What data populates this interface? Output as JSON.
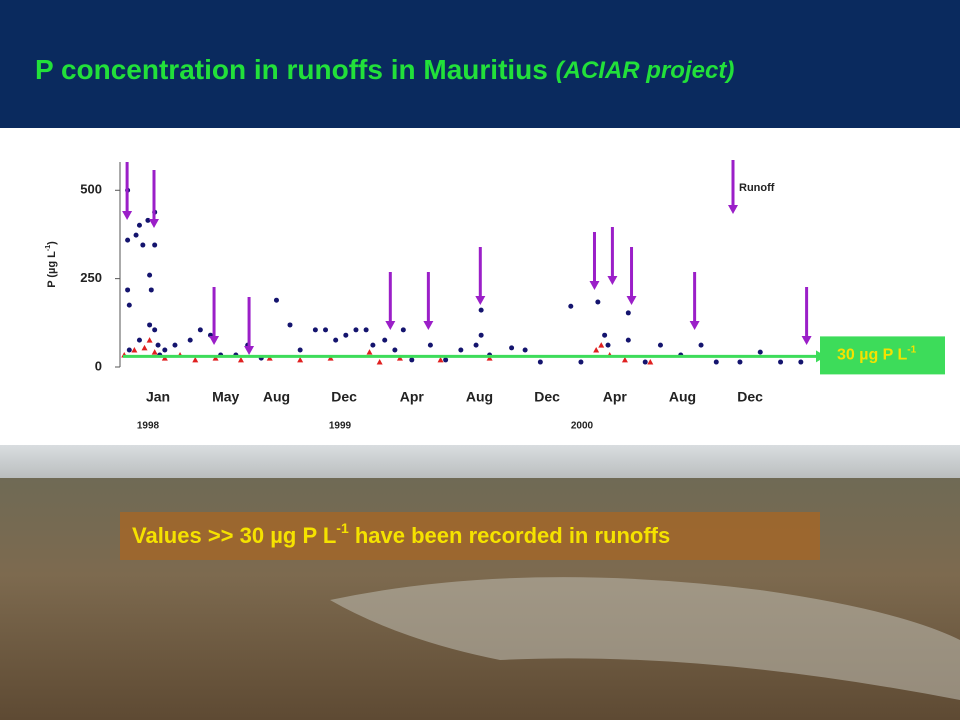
{
  "chart_data": {
    "type": "scatter",
    "title": "P concentration in runoffs in Mauritius",
    "title_note": "(ACIAR project)",
    "ylabel": "P  (µg L",
    "ylabel_sup": "-1",
    "ylabel_tail": ")",
    "xlim": [
      -2.25,
      38.6
    ],
    "ylim": [
      0,
      580
    ],
    "yticks": [
      0,
      250,
      500
    ],
    "xticks": [
      {
        "value": 0,
        "label": "Jan"
      },
      {
        "value": 4,
        "label": "May"
      },
      {
        "value": 7,
        "label": "Aug"
      },
      {
        "value": 11,
        "label": "Dec"
      },
      {
        "value": 15,
        "label": "Apr"
      },
      {
        "value": 19,
        "label": "Aug"
      },
      {
        "value": 23,
        "label": "Dec"
      },
      {
        "value": 27,
        "label": "Apr"
      },
      {
        "value": 31,
        "label": "Aug"
      },
      {
        "value": 35,
        "label": "Dec"
      }
    ],
    "x_group_labels": [
      "1998",
      "1999",
      "2000"
    ],
    "series": [
      {
        "color": "#14146e",
        "marker": "circle",
        "x": [
          -1.8,
          -1.8,
          -1.8,
          -1.7,
          -1.7,
          -1.3,
          -1.1,
          -1.1,
          -0.9,
          -0.6,
          -0.5,
          -0.5,
          -0.4,
          -0.2,
          -0.2,
          -0.2,
          0,
          0.1,
          0.4,
          1.0,
          1.9,
          2.5,
          3.1,
          3.7,
          4.6,
          5.3,
          6.1,
          7.0,
          7.8,
          8.4,
          9.3,
          9.9,
          10.5,
          11.1,
          11.7,
          12.3,
          12.7,
          13.4,
          14.0,
          14.5,
          15.0,
          16.1,
          17.0,
          17.9,
          18.8,
          19.1,
          19.1,
          19.6,
          20.9,
          21.7,
          22.6,
          24.4,
          25.0,
          26.0,
          26.4,
          26.6,
          27.8,
          27.8,
          28.8,
          29.7,
          30.9,
          32.1,
          33.0,
          34.4,
          35.6,
          36.8,
          38.0
        ],
        "y": [
          500,
          359,
          218,
          175,
          48,
          373,
          401,
          76,
          345,
          415,
          260,
          119,
          218,
          438,
          345,
          105,
          62,
          34,
          48,
          62,
          76,
          105,
          90,
          34,
          34,
          62,
          25,
          189,
          119,
          48,
          105,
          105,
          76,
          90,
          105,
          105,
          62,
          76,
          48,
          105,
          20,
          62,
          20,
          48,
          62,
          161,
          90,
          34,
          54,
          48,
          14,
          172,
          14,
          184,
          90,
          62,
          153,
          76,
          14,
          62,
          34,
          62,
          14,
          14,
          42,
          14,
          14
        ]
      },
      {
        "color": "#e02020",
        "marker": "triangle",
        "x": [
          -2.0,
          -1.4,
          -0.8,
          -0.5,
          -0.2,
          0.4,
          1.3,
          2.2,
          3.4,
          4.9,
          6.6,
          8.4,
          10.2,
          12.5,
          13.1,
          14.3,
          16.7,
          19.6,
          25.9,
          26.2,
          26.7,
          27.6,
          29.1
        ],
        "y": [
          34,
          48,
          54,
          76,
          42,
          25,
          34,
          20,
          25,
          20,
          25,
          20,
          25,
          42,
          14,
          25,
          20,
          25,
          48,
          62,
          34,
          20,
          14
        ]
      }
    ],
    "runoff": {
      "label": "Runoff",
      "color": "#9b1fc8",
      "x": [
        -1.83,
        -0.24,
        3.31,
        5.38,
        13.73,
        15.98,
        19.05,
        25.8,
        26.86,
        27.99,
        31.72,
        38.34
      ]
    },
    "threshold": {
      "value": 30,
      "color": "#3ddc5a",
      "label": "30 µg P L",
      "label_sup": "-1"
    },
    "banner": {
      "text": "Values >> 30 µg P L",
      "sup": "-1",
      "tail": " have been recorded in runoffs"
    }
  }
}
